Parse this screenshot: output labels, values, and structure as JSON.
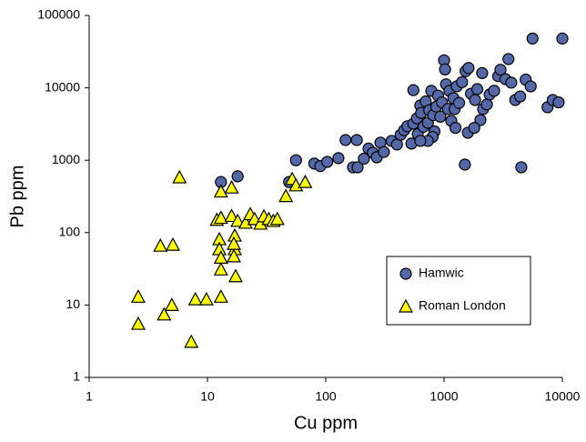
{
  "chart_data": {
    "type": "scatter",
    "x_label": "Cu ppm",
    "y_label": "Pb ppm",
    "xscale": "log",
    "yscale": "log",
    "xlim": [
      1,
      10000
    ],
    "ylim": [
      1,
      100000
    ],
    "xticks": [
      1,
      10,
      100,
      1000,
      10000
    ],
    "yticks": [
      1,
      10,
      100,
      1000,
      10000,
      100000
    ],
    "legend": "lower right",
    "series": [
      {
        "name": "Hamwic",
        "color": "#5468a8",
        "marker": "circle",
        "x": [
          13,
          18,
          56,
          49,
          80,
          90,
          103,
          128,
          147,
          183,
          170,
          186,
          210,
          230,
          250,
          270,
          290,
          310,
          360,
          400,
          430,
          460,
          490,
          530,
          550,
          550,
          590,
          600,
          630,
          640,
          670,
          700,
          730,
          750,
          780,
          810,
          830,
          860,
          890,
          930,
          960,
          1000,
          1020,
          1040,
          1080,
          1110,
          1150,
          1200,
          1230,
          1280,
          1340,
          1420,
          1500,
          1520,
          1590,
          1610,
          1690,
          1830,
          1910,
          2030,
          2140,
          2300,
          2430,
          2650,
          2870,
          3000,
          3300,
          3500,
          3700,
          4000,
          4400,
          4500,
          4900,
          5400,
          5600,
          7500,
          8300,
          9300,
          10000,
          2100,
          1800,
          1250,
          800,
          730,
          630
        ],
        "values": [
          500,
          600,
          1000,
          500,
          900,
          830,
          950,
          1070,
          1900,
          1900,
          800,
          800,
          1050,
          1450,
          1270,
          1100,
          1750,
          1300,
          1850,
          1650,
          2250,
          2600,
          2950,
          1700,
          3200,
          9300,
          3800,
          2300,
          5700,
          4500,
          2900,
          6500,
          3300,
          4900,
          9100,
          4200,
          2500,
          5500,
          7800,
          4000,
          6300,
          24000,
          18000,
          11200,
          5100,
          9100,
          3500,
          7200,
          5100,
          10500,
          6200,
          12000,
          870,
          17000,
          2400,
          18800,
          8300,
          6800,
          9600,
          3600,
          5100,
          5900,
          8100,
          9100,
          14500,
          17800,
          13200,
          25000,
          11800,
          6800,
          7600,
          800,
          13000,
          10500,
          48000,
          5400,
          6800,
          6300,
          48000,
          16000,
          2800,
          2800,
          2100,
          1850,
          1850
        ]
      },
      {
        "name": "Roman London",
        "color": "#ffff00",
        "marker": "triangle",
        "x": [
          2.6,
          2.6,
          4.3,
          4.0,
          5.1,
          5.0,
          5.8,
          7.3,
          7.9,
          9.8,
          13,
          13,
          12.6,
          12.6,
          13,
          13,
          12,
          13,
          16,
          17,
          17,
          16.7,
          16.7,
          17.3,
          16,
          18,
          21,
          23,
          25,
          28,
          30,
          33,
          36,
          39,
          46,
          52,
          56,
          67
        ],
        "values": [
          13,
          5.5,
          7.4,
          66,
          68,
          10,
          580,
          3.1,
          12,
          12,
          13,
          31,
          81,
          59,
          45,
          370,
          150,
          160,
          420,
          91,
          59,
          70,
          47,
          25,
          170,
          145,
          137,
          180,
          154,
          133,
          168,
          154,
          145,
          154,
          320,
          550,
          450,
          500
        ]
      }
    ]
  }
}
